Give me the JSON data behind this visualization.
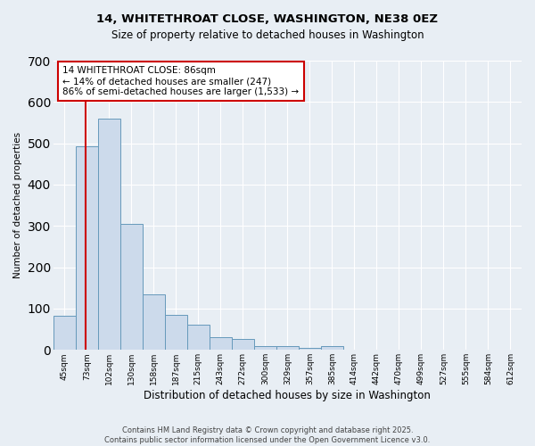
{
  "title1": "14, WHITETHROAT CLOSE, WASHINGTON, NE38 0EZ",
  "title2": "Size of property relative to detached houses in Washington",
  "xlabel": "Distribution of detached houses by size in Washington",
  "ylabel": "Number of detached properties",
  "categories": [
    "45sqm",
    "73sqm",
    "102sqm",
    "130sqm",
    "158sqm",
    "187sqm",
    "215sqm",
    "243sqm",
    "272sqm",
    "300sqm",
    "329sqm",
    "357sqm",
    "385sqm",
    "414sqm",
    "442sqm",
    "470sqm",
    "499sqm",
    "527sqm",
    "555sqm",
    "584sqm",
    "612sqm"
  ],
  "values": [
    82,
    493,
    560,
    305,
    135,
    84,
    60,
    30,
    26,
    10,
    9,
    6,
    10,
    0,
    0,
    0,
    0,
    0,
    0,
    0,
    0
  ],
  "bar_color": "#ccdaeb",
  "bar_edge_color": "#6699bb",
  "annotation_text": "14 WHITETHROAT CLOSE: 86sqm\n← 14% of detached houses are smaller (247)\n86% of semi-detached houses are larger (1,533) →",
  "annotation_box_color": "#ffffff",
  "annotation_box_edge": "#cc0000",
  "ylim": [
    0,
    700
  ],
  "yticks": [
    0,
    100,
    200,
    300,
    400,
    500,
    600,
    700
  ],
  "footnote": "Contains HM Land Registry data © Crown copyright and database right 2025.\nContains public sector information licensed under the Open Government Licence v3.0.",
  "bg_color": "#e8eef4",
  "plot_bg_color": "#e8eef4",
  "grid_color": "#ffffff",
  "red_line_color": "#cc0000"
}
